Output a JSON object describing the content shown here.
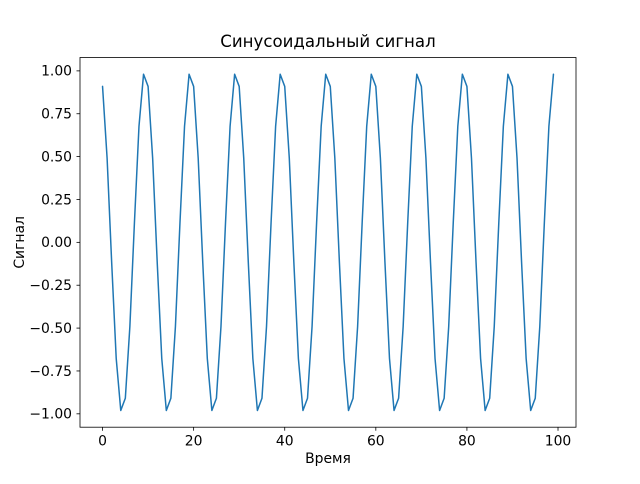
{
  "figure": {
    "title": "Синусоидальный сигнал",
    "xlabel": "Время",
    "ylabel": "Сигнал"
  },
  "chart_data": {
    "type": "line",
    "title": "Синусоидальный сигнал",
    "xlabel": "Время",
    "ylabel": "Сигнал",
    "legend": null,
    "grid": false,
    "background": "#ffffff",
    "line_color": "#1f77b4",
    "xlim": [
      -4.95,
      103.95
    ],
    "ylim": [
      -1.078,
      1.078
    ],
    "xtick_values": [
      0,
      20,
      40,
      60,
      80,
      100
    ],
    "xtick_labels": [
      "0",
      "20",
      "40",
      "60",
      "80",
      "100"
    ],
    "ytick_values": [
      -1.0,
      -0.75,
      -0.5,
      -0.25,
      0.0,
      0.25,
      0.5,
      0.75,
      1.0
    ],
    "ytick_labels": [
      "−1.00",
      "−0.75",
      "−0.50",
      "−0.25",
      "0.00",
      "0.25",
      "0.50",
      "0.75",
      "1.00"
    ],
    "x": [
      0,
      1,
      2,
      3,
      4,
      5,
      6,
      7,
      8,
      9,
      10,
      11,
      12,
      13,
      14,
      15,
      16,
      17,
      18,
      19,
      20,
      21,
      22,
      23,
      24,
      25,
      26,
      27,
      28,
      29,
      30,
      31,
      32,
      33,
      34,
      35,
      36,
      37,
      38,
      39,
      40,
      41,
      42,
      43,
      44,
      45,
      46,
      47,
      48,
      49,
      50,
      51,
      52,
      53,
      54,
      55,
      56,
      57,
      58,
      59,
      60,
      61,
      62,
      63,
      64,
      65,
      66,
      67,
      68,
      69,
      70,
      71,
      72,
      73,
      74,
      75,
      76,
      77,
      78,
      79,
      80,
      81,
      82,
      83,
      84,
      85,
      86,
      87,
      88,
      89,
      90,
      91,
      92,
      93,
      94,
      95,
      96,
      97,
      98,
      99
    ],
    "y": [
      0.9093,
      0.4911,
      -0.1148,
      -0.6768,
      -0.9803,
      -0.9093,
      -0.4911,
      0.1148,
      0.6768,
      0.9803,
      0.9093,
      0.4911,
      -0.1148,
      -0.6768,
      -0.9803,
      -0.9093,
      -0.4911,
      0.1148,
      0.6768,
      0.9803,
      0.9093,
      0.4911,
      -0.1148,
      -0.6768,
      -0.9803,
      -0.9093,
      -0.4911,
      0.1148,
      0.6768,
      0.9803,
      0.9093,
      0.4911,
      -0.1148,
      -0.6768,
      -0.9803,
      -0.9093,
      -0.4911,
      0.1148,
      0.6768,
      0.9803,
      0.9093,
      0.4911,
      -0.1148,
      -0.6768,
      -0.9803,
      -0.9093,
      -0.4911,
      0.1148,
      0.6768,
      0.9803,
      0.9093,
      0.4911,
      -0.1148,
      -0.6768,
      -0.9803,
      -0.9093,
      -0.4911,
      0.1148,
      0.6768,
      0.9803,
      0.9093,
      0.4911,
      -0.1148,
      -0.6768,
      -0.9803,
      -0.9093,
      -0.4911,
      0.1148,
      0.6768,
      0.9803,
      0.9093,
      0.4911,
      -0.1148,
      -0.6768,
      -0.9803,
      -0.9093,
      -0.4911,
      0.1148,
      0.6768,
      0.9803,
      0.9093,
      0.4911,
      -0.1148,
      -0.6768,
      -0.9803,
      -0.9093,
      -0.4911,
      0.1148,
      0.6768,
      0.9803,
      0.9093,
      0.4911,
      -0.1148,
      -0.6768,
      -0.9803,
      -0.9093,
      -0.4911,
      0.1148,
      0.6768,
      0.9803
    ]
  }
}
